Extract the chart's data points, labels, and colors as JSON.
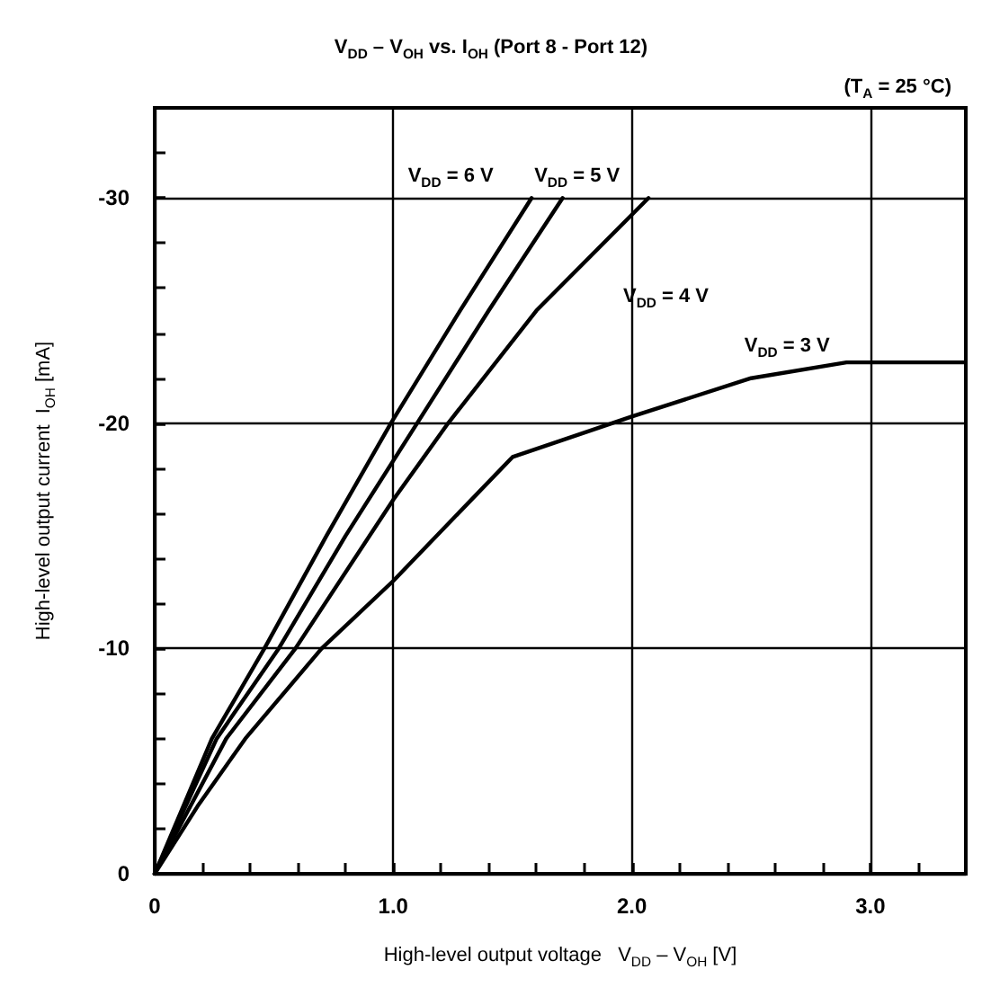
{
  "chart_data": {
    "type": "line",
    "title": "V$_{DD}$ – V$_{OH}$ vs. I$_{OH}$ (Port 8 - Port 12)",
    "subtitle": "(T$_{A}$ = 25 °C)",
    "xlabel": "High-level output voltage   V$_{DD}$ – V$_{OH}$ [V]",
    "ylabel": "High-level output current  I$_{OH}$ [mA]",
    "xlim": [
      0,
      3.4
    ],
    "ylim": [
      0,
      -34
    ],
    "xticks": [
      0,
      {
        "value": 0.2,
        "label": null
      },
      {
        "value": 0.4,
        "label": null
      },
      {
        "value": 0.6,
        "label": null
      },
      {
        "value": 0.8,
        "label": null
      },
      {
        "value": 1,
        "label": "1.0"
      },
      {
        "value": 1.2,
        "label": null
      },
      {
        "value": 1.4,
        "label": null
      },
      {
        "value": 1.6,
        "label": null
      },
      {
        "value": 1.8,
        "label": null
      },
      {
        "value": 2,
        "label": "2.0"
      },
      {
        "value": 2.2,
        "label": null
      },
      {
        "value": 2.4,
        "label": null
      },
      {
        "value": 2.6,
        "label": null
      },
      {
        "value": 2.8,
        "label": null
      },
      {
        "value": 3,
        "label": "3.0"
      },
      {
        "value": 3.2,
        "label": null
      }
    ],
    "yticks": [
      0,
      {
        "value": -2,
        "label": null
      },
      {
        "value": -4,
        "label": null
      },
      {
        "value": -6,
        "label": null
      },
      {
        "value": -8,
        "label": null
      },
      -10,
      {
        "value": -12,
        "label": null
      },
      {
        "value": -14,
        "label": null
      },
      {
        "value": -16,
        "label": null
      },
      {
        "value": -18,
        "label": null
      },
      -20,
      {
        "value": -22,
        "label": null
      },
      {
        "value": -24,
        "label": null
      },
      {
        "value": -26,
        "label": null
      },
      {
        "value": -28,
        "label": null
      },
      -30,
      {
        "value": -32,
        "label": null
      }
    ],
    "grid": true,
    "legend": false,
    "marker": "none",
    "line_style": "solid",
    "series": [
      {
        "name": "V$_{DD}$ = 6 V",
        "color": "#000000",
        "x": [
          0,
          0.12,
          0.24,
          0.46,
          0.72,
          0.99,
          1.28,
          1.58
        ],
        "values": [
          0,
          -3,
          -6,
          -10,
          -15,
          -20,
          -25,
          -30
        ]
      },
      {
        "name": "V$_{DD}$ = 5 V",
        "color": "#000000",
        "x": [
          0,
          0.13,
          0.26,
          0.52,
          0.8,
          1.1,
          1.4,
          1.71
        ],
        "values": [
          0,
          -3,
          -6,
          -10,
          -15,
          -20,
          -25,
          -30
        ]
      },
      {
        "name": "V$_{DD}$ = 4 V",
        "color": "#000000",
        "x": [
          0,
          0.15,
          0.3,
          0.59,
          1.0,
          1.23,
          1.6,
          2.07
        ],
        "values": [
          0,
          -3,
          -6,
          -10,
          -16.6,
          -20,
          -25,
          -30
        ]
      },
      {
        "name": "V$_{DD}$ = 3 V",
        "color": "#000000",
        "x": [
          0,
          0.18,
          0.38,
          0.7,
          1.0,
          1.5,
          2.0,
          2.5,
          2.9,
          3.4
        ],
        "values": [
          0,
          -3,
          -6,
          -10,
          -13,
          -18.5,
          -20.3,
          -22,
          -22.7,
          -22.7
        ]
      }
    ]
  }
}
